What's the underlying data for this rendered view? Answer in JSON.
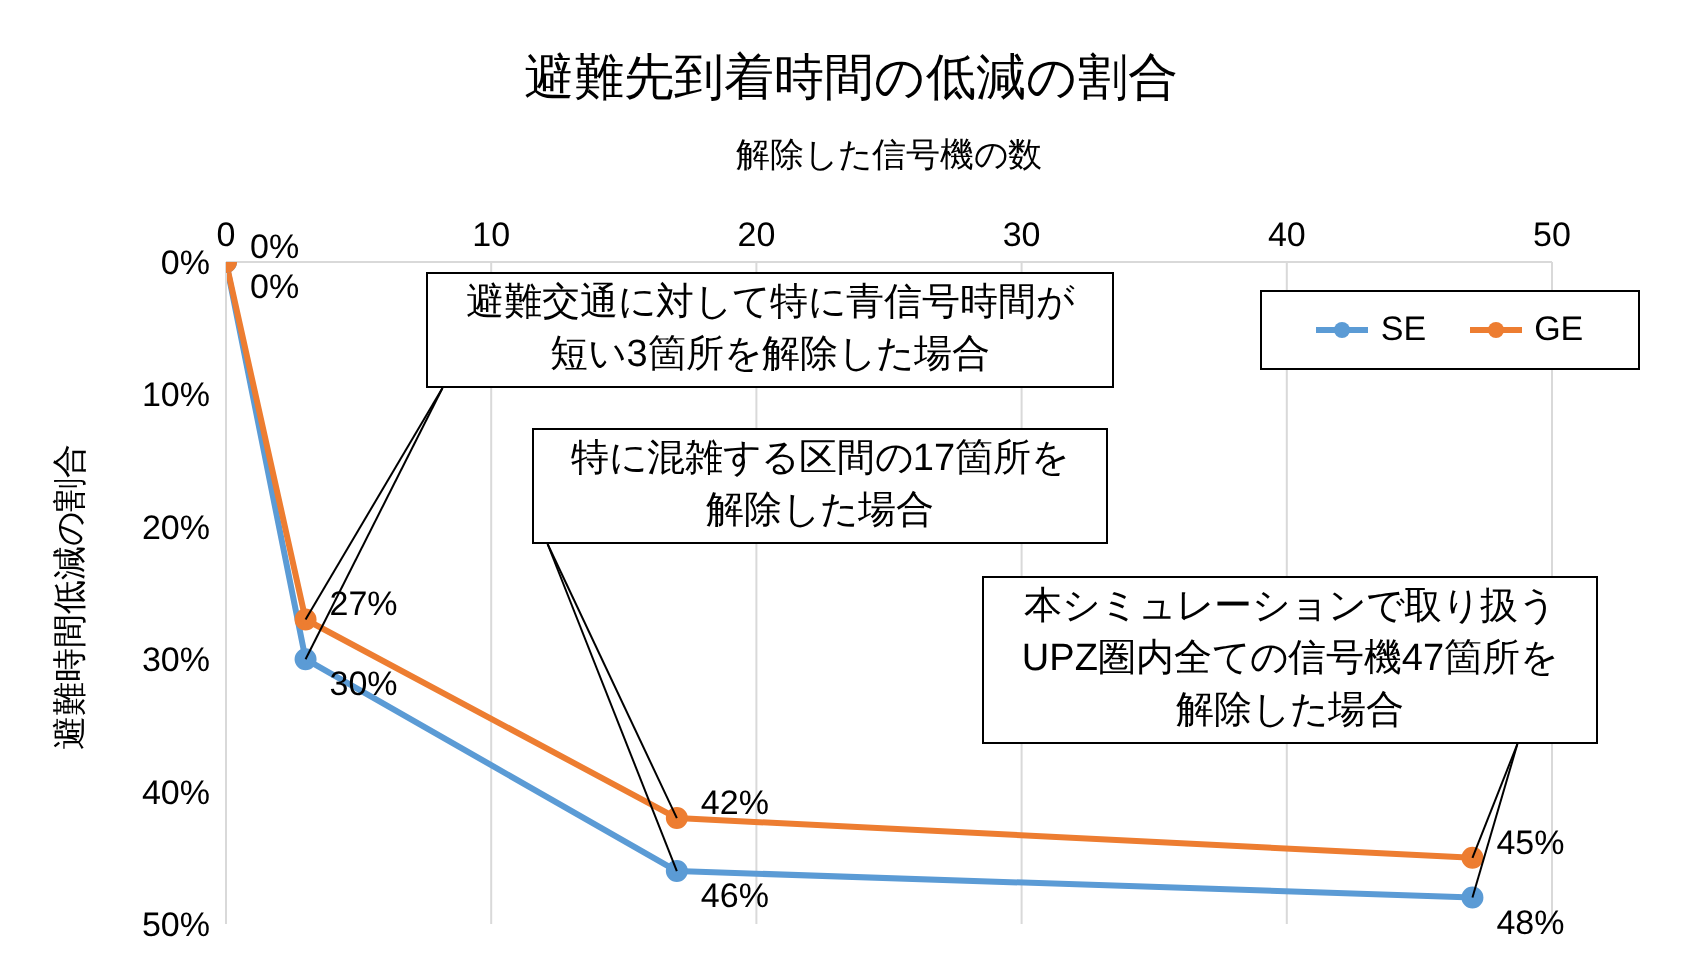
{
  "chart_data": {
    "type": "line",
    "title": "避難先到着時間の低減の割合",
    "xlabel": "解除した信号機の数",
    "ylabel": "避難時間低減の割合",
    "xlim": [
      0,
      50
    ],
    "xticks": [
      0,
      10,
      20,
      30,
      40,
      50
    ],
    "ylim": [
      50,
      0
    ],
    "yticks": [
      {
        "value": 0,
        "label": "0%"
      },
      {
        "value": 10,
        "label": "10%"
      },
      {
        "value": 20,
        "label": "20%"
      },
      {
        "value": 30,
        "label": "30%"
      },
      {
        "value": 40,
        "label": "40%"
      },
      {
        "value": 50,
        "label": "50%"
      }
    ],
    "x": [
      0,
      3,
      17,
      47
    ],
    "series": [
      {
        "name": "SE",
        "color": "#5b9bd5",
        "values": [
          0,
          30,
          46,
          48
        ],
        "value_labels": [
          "0%",
          "30%",
          "46%",
          "48%"
        ]
      },
      {
        "name": "GE",
        "color": "#ed7d31",
        "values": [
          0,
          27,
          42,
          45
        ],
        "value_labels": [
          "0%",
          "27%",
          "42%",
          "45%"
        ]
      }
    ],
    "annotations": [
      {
        "text": "避難交通に対して特に青信号時間が短い3箇所を解除した場合",
        "x": 3,
        "y": 30
      },
      {
        "text": "特に混雑する区間の17箇所を解除した場合",
        "x": 17,
        "y": 46
      },
      {
        "text": "本シミュレーションで取り扱うUPZ圏内全ての信号機47箇所を解除した場合",
        "x": 47,
        "y": 48
      }
    ],
    "grid": "x",
    "legend": "top right",
    "marker": "circle",
    "line_style": "solid"
  }
}
